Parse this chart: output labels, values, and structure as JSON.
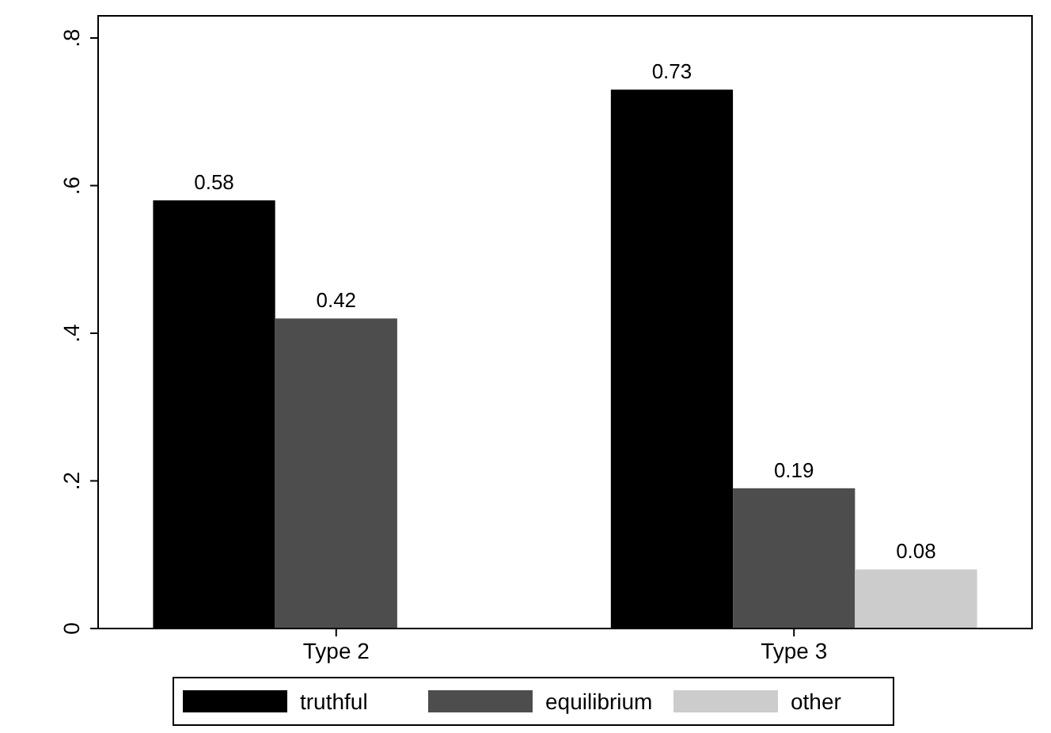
{
  "chart_data": {
    "type": "bar",
    "categories": [
      "Type 2",
      "Type 3"
    ],
    "series": [
      {
        "name": "truthful",
        "color": "#000000",
        "values": [
          0.58,
          0.73
        ]
      },
      {
        "name": "equilibrium",
        "color": "#4d4d4d",
        "values": [
          0.42,
          0.19
        ]
      },
      {
        "name": "other",
        "color": "#cccccc",
        "values": [
          null,
          0.08
        ]
      }
    ],
    "ylim": [
      0,
      0.83
    ],
    "yticks": [
      0,
      {
        "value": 0.2,
        "label": ".2"
      },
      {
        "value": 0.4,
        "label": ".4"
      },
      {
        "value": 0.6,
        "label": ".6"
      },
      {
        "value": 0.8,
        "label": ".8"
      }
    ],
    "data_labels": true,
    "legend": "bottom",
    "grid": false
  }
}
